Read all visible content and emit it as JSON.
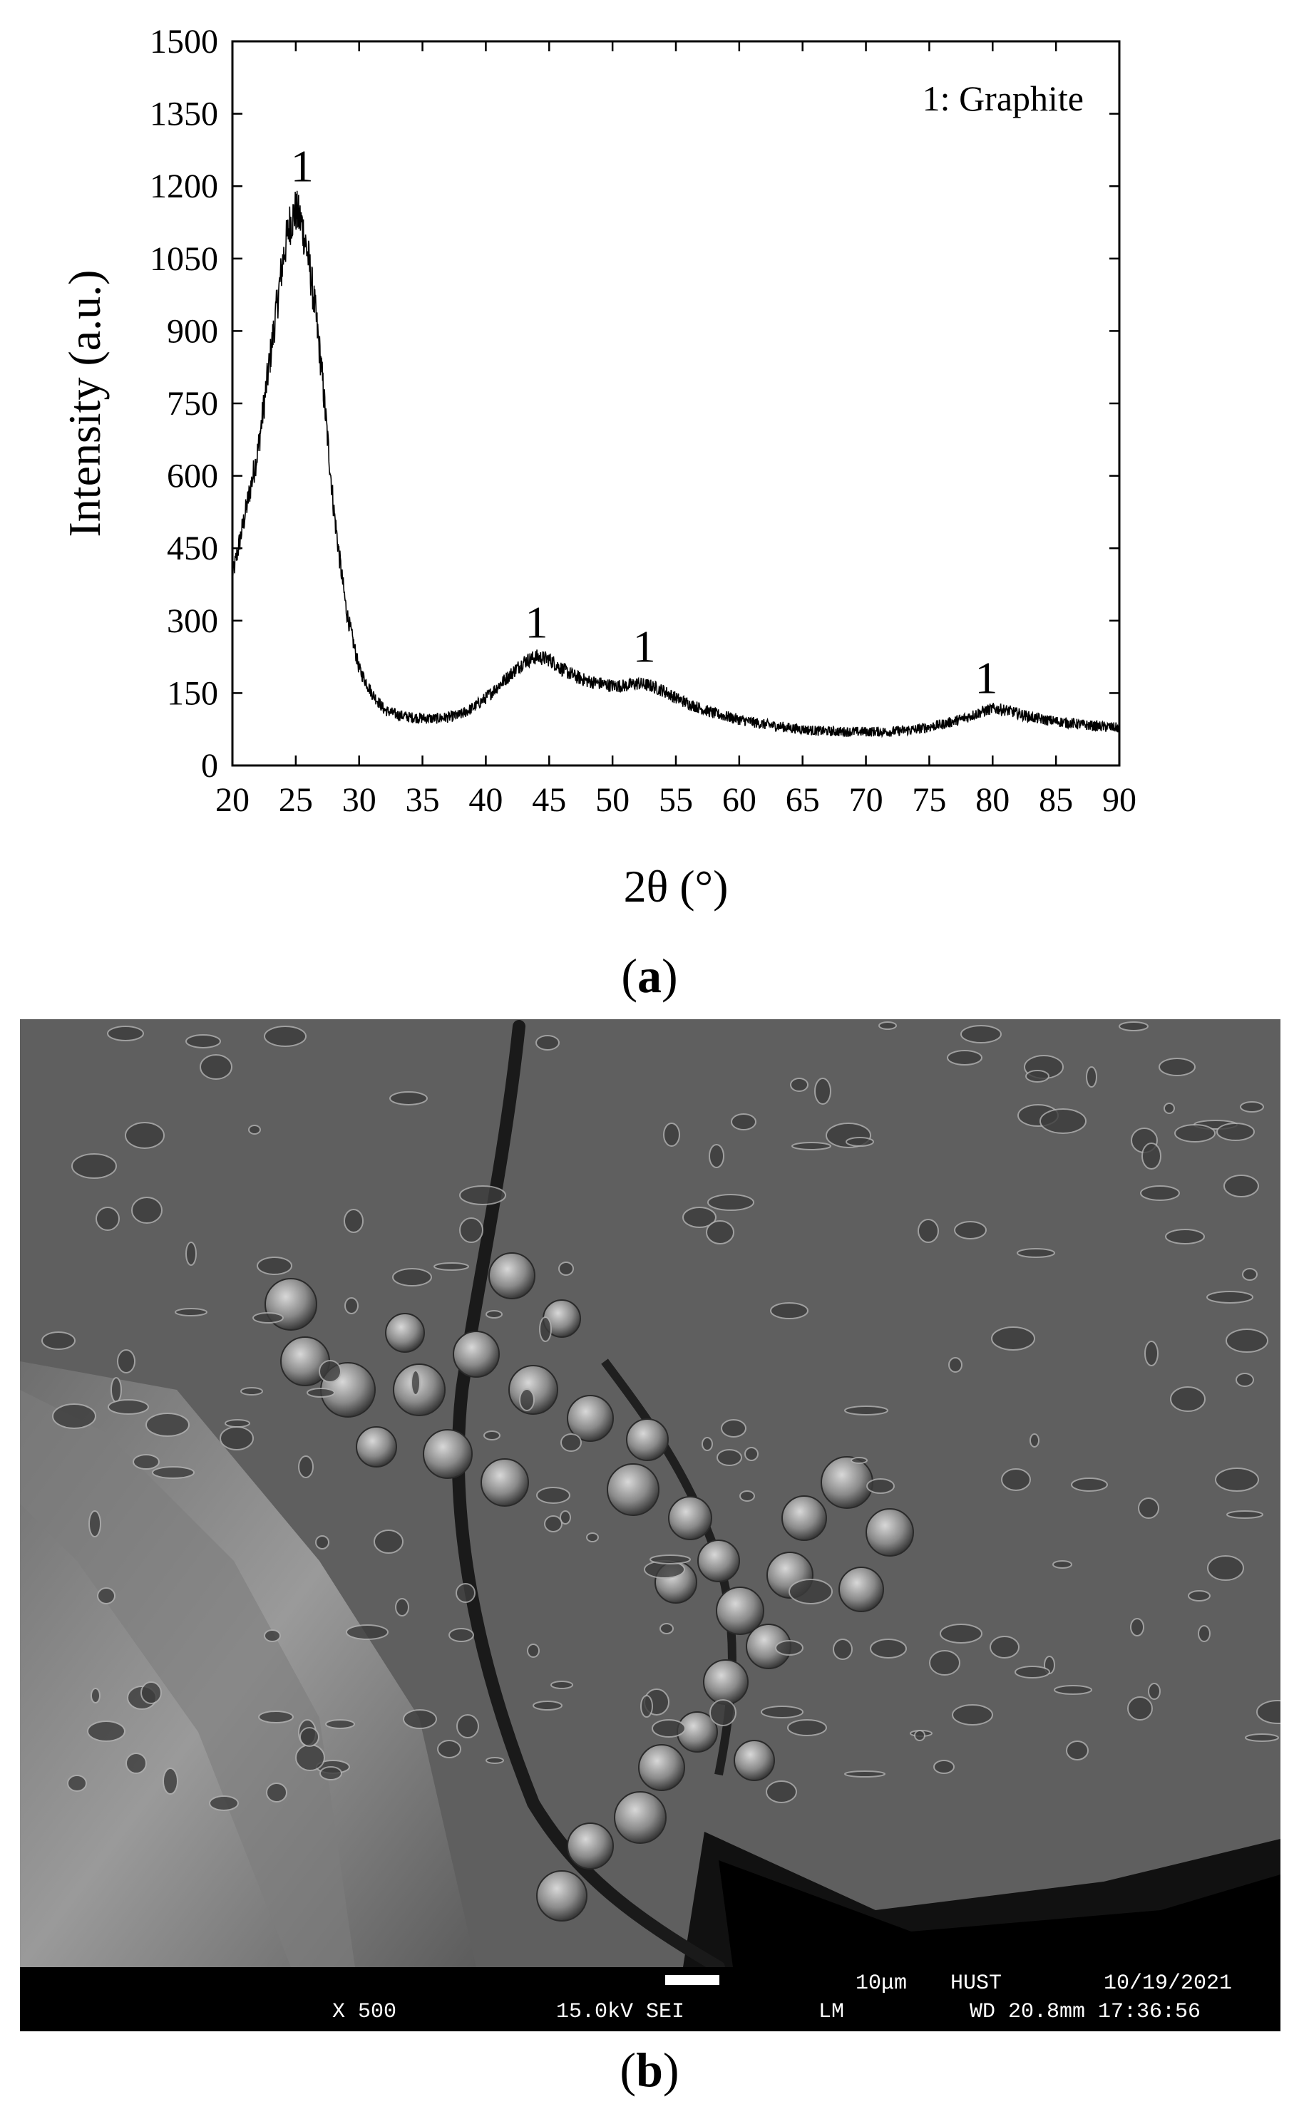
{
  "chart_data": {
    "type": "line",
    "title": "",
    "xlabel": "2θ (°)",
    "ylabel": "Intensity (a.u.)",
    "xlim": [
      20,
      90
    ],
    "ylim": [
      0,
      1500
    ],
    "x_ticks": [
      20,
      25,
      30,
      35,
      40,
      45,
      50,
      55,
      60,
      65,
      70,
      75,
      80,
      85,
      90
    ],
    "y_ticks": [
      0,
      150,
      300,
      450,
      600,
      750,
      900,
      1050,
      1200,
      1350,
      1500
    ],
    "legend_text": "1: Graphite",
    "legend_position": "top-right",
    "grid": false,
    "line_color": "#000000",
    "series": [
      {
        "x": [
          20,
          21,
          22,
          23,
          24,
          24.5,
          25,
          25.5,
          26,
          26.5,
          27,
          27.5,
          28,
          28.5,
          29,
          30,
          31,
          32,
          33,
          34,
          35,
          36,
          37,
          38,
          39,
          40,
          41,
          42,
          43,
          44,
          45,
          46,
          47,
          48,
          49,
          50,
          51,
          52,
          53,
          54,
          55,
          56,
          57,
          58,
          60,
          62,
          64,
          66,
          68,
          70,
          72,
          74,
          76,
          77,
          78,
          79,
          80,
          81,
          82,
          83,
          84,
          86,
          88,
          90
        ],
        "y": [
          390,
          520,
          650,
          850,
          1050,
          1120,
          1150,
          1120,
          1050,
          950,
          830,
          680,
          530,
          420,
          320,
          200,
          150,
          115,
          105,
          100,
          98,
          97,
          100,
          105,
          120,
          140,
          165,
          190,
          215,
          225,
          220,
          200,
          185,
          175,
          170,
          165,
          165,
          170,
          165,
          155,
          140,
          128,
          118,
          108,
          95,
          85,
          78,
          72,
          70,
          70,
          70,
          75,
          85,
          92,
          100,
          110,
          118,
          115,
          108,
          100,
          95,
          88,
          82,
          78
        ]
      }
    ],
    "annotations": [
      {
        "text": "1",
        "x": 25.5,
        "y": 1210
      },
      {
        "text": "1",
        "x": 44,
        "y": 265
      },
      {
        "text": "1",
        "x": 52.5,
        "y": 215
      },
      {
        "text": "1",
        "x": 79.5,
        "y": 150
      }
    ]
  },
  "panel_a_label": "a",
  "panel_b_label": "b",
  "sem": {
    "magnification": "X 500",
    "voltage_mode": "15.0kV SEI",
    "mode": "LM",
    "scale_text": "10μm",
    "institution": "HUST",
    "date": "10/19/2021",
    "working_distance_time": "WD 20.8mm 17:36:56"
  }
}
